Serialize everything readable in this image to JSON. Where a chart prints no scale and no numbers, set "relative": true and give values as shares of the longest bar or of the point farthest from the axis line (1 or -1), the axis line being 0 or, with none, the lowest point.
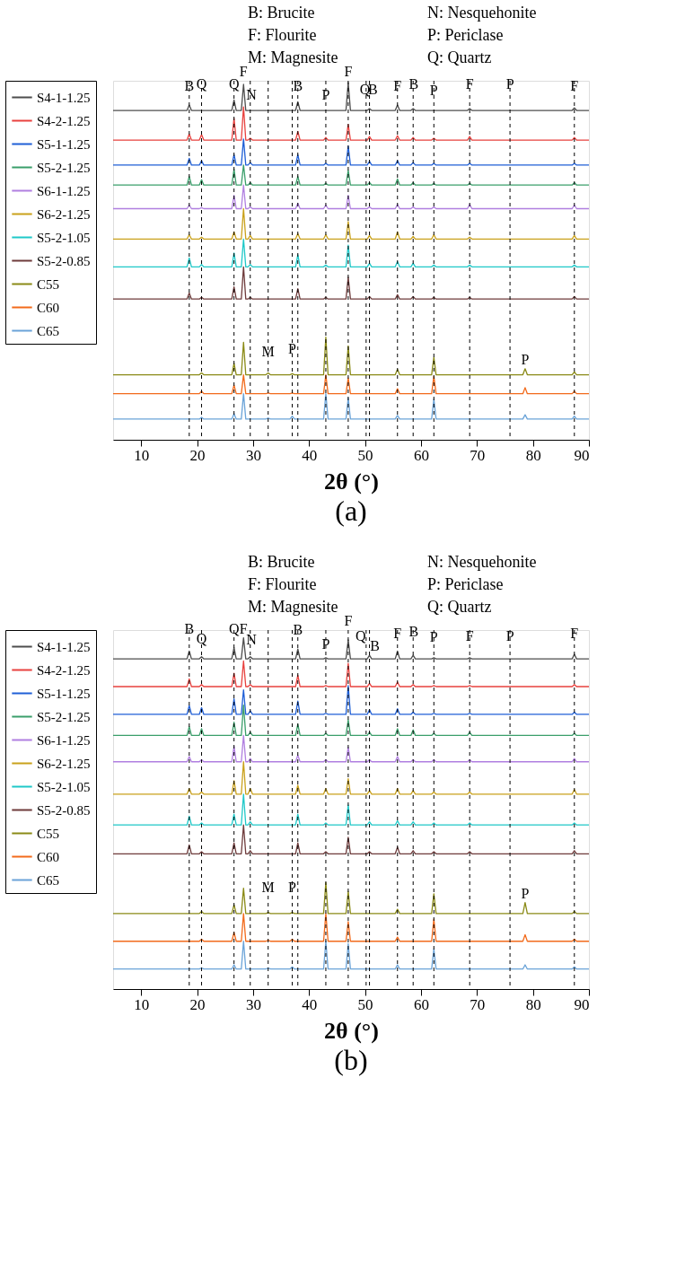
{
  "chart_data": [
    {
      "type": "line",
      "relative": true,
      "title": "(a)",
      "xlabel": "2θ (°)",
      "xlim": [
        5,
        90
      ],
      "xticks": [
        10,
        20,
        30,
        40,
        50,
        60,
        70,
        80,
        90
      ],
      "grid": false,
      "legend": "left",
      "x": [
        5,
        18.2,
        18.6,
        19.0,
        20.4,
        20.8,
        21.2,
        26.2,
        26.6,
        27.0,
        27.9,
        28.3,
        28.7,
        29.1,
        29.5,
        29.9,
        37.6,
        38.0,
        38.4,
        42.6,
        43.0,
        43.4,
        46.6,
        47.0,
        47.4,
        50.4,
        50.8,
        51.2,
        55.4,
        55.8,
        56.2,
        58.2,
        58.6,
        59.0,
        61.9,
        62.3,
        62.7,
        68.3,
        68.7,
        69.1,
        87.0,
        87.4,
        87.8,
        90
      ],
      "series": [
        {
          "name": "S4-1-1.25",
          "color": "#4d4d4d",
          "values": [
            0.922,
            0.922,
            0.937,
            0.922,
            0.922,
            0.922,
            0.922,
            0.922,
            0.951,
            0.922,
            0.922,
            0.995,
            0.922,
            0.922,
            0.922,
            0.922,
            0.922,
            0.946,
            0.922,
            0.922,
            0.922,
            0.922,
            0.922,
            1.0,
            0.922,
            0.922,
            0.927,
            0.922,
            0.922,
            0.937,
            0.922,
            0.922,
            0.927,
            0.922,
            0.922,
            0.922,
            0.922,
            0.922,
            0.927,
            0.922,
            0.922,
            0.929,
            0.922,
            0.922
          ]
        },
        {
          "name": "S4-2-1.25",
          "color": "#e8413e",
          "values": [
            0.839,
            0.839,
            0.856,
            0.839,
            0.839,
            0.854,
            0.839,
            0.839,
            0.9,
            0.839,
            0.839,
            0.932,
            0.839,
            0.839,
            0.844,
            0.839,
            0.839,
            0.863,
            0.839,
            0.839,
            0.846,
            0.839,
            0.839,
            0.883,
            0.839,
            0.839,
            0.849,
            0.839,
            0.839,
            0.851,
            0.839,
            0.839,
            0.846,
            0.839,
            0.839,
            0.844,
            0.839,
            0.839,
            0.849,
            0.839,
            0.839,
            0.846,
            0.839,
            0.839
          ]
        },
        {
          "name": "S5-1-1.25",
          "color": "#1f5fd6",
          "values": [
            0.769,
            0.769,
            0.788,
            0.769,
            0.769,
            0.781,
            0.769,
            0.769,
            0.798,
            0.769,
            0.769,
            0.842,
            0.769,
            0.769,
            0.776,
            0.769,
            0.769,
            0.798,
            0.769,
            0.769,
            0.774,
            0.769,
            0.769,
            0.822,
            0.769,
            0.769,
            0.779,
            0.769,
            0.769,
            0.781,
            0.769,
            0.769,
            0.776,
            0.769,
            0.769,
            0.774,
            0.769,
            0.769,
            0.774,
            0.769,
            0.769,
            0.774,
            0.769,
            0.769
          ]
        },
        {
          "name": "S5-2-1.25",
          "color": "#3a9e6a",
          "values": [
            0.713,
            0.713,
            0.737,
            0.713,
            0.713,
            0.728,
            0.713,
            0.713,
            0.757,
            0.713,
            0.713,
            0.769,
            0.713,
            0.713,
            0.72,
            0.713,
            0.713,
            0.737,
            0.713,
            0.713,
            0.718,
            0.713,
            0.713,
            0.754,
            0.713,
            0.713,
            0.72,
            0.713,
            0.713,
            0.73,
            0.713,
            0.713,
            0.72,
            0.713,
            0.713,
            0.718,
            0.713,
            0.713,
            0.718,
            0.713,
            0.713,
            0.72,
            0.713,
            0.713
          ]
        },
        {
          "name": "S6-1-1.25",
          "color": "#b07fe0",
          "values": [
            0.647,
            0.647,
            0.657,
            0.647,
            0.647,
            0.65,
            0.647,
            0.647,
            0.684,
            0.647,
            0.647,
            0.713,
            0.647,
            0.647,
            0.652,
            0.647,
            0.647,
            0.662,
            0.647,
            0.647,
            0.657,
            0.647,
            0.647,
            0.684,
            0.647,
            0.647,
            0.652,
            0.647,
            0.647,
            0.659,
            0.647,
            0.647,
            0.652,
            0.647,
            0.647,
            0.652,
            0.647,
            0.647,
            0.659,
            0.647,
            0.647,
            0.657,
            0.647,
            0.647
          ]
        },
        {
          "name": "S6-2-1.25",
          "color": "#c9a11b",
          "values": [
            0.562,
            0.562,
            0.574,
            0.562,
            0.562,
            0.567,
            0.562,
            0.562,
            0.582,
            0.562,
            0.562,
            0.647,
            0.562,
            0.562,
            0.572,
            0.562,
            0.562,
            0.577,
            0.562,
            0.562,
            0.574,
            0.562,
            0.562,
            0.611,
            0.562,
            0.562,
            0.572,
            0.562,
            0.562,
            0.582,
            0.562,
            0.562,
            0.569,
            0.562,
            0.562,
            0.574,
            0.562,
            0.562,
            0.567,
            0.562,
            0.562,
            0.572,
            0.562,
            0.562
          ]
        },
        {
          "name": "S5-2-1.05",
          "color": "#1fc8c8",
          "values": [
            0.484,
            0.484,
            0.509,
            0.484,
            0.484,
            0.491,
            0.484,
            0.484,
            0.523,
            0.484,
            0.484,
            0.562,
            0.484,
            0.484,
            0.491,
            0.484,
            0.484,
            0.518,
            0.484,
            0.484,
            0.489,
            0.484,
            0.484,
            0.545,
            0.484,
            0.484,
            0.494,
            0.484,
            0.484,
            0.499,
            0.484,
            0.484,
            0.494,
            0.484,
            0.484,
            0.489,
            0.484,
            0.484,
            0.489,
            0.484,
            0.484,
            0.489,
            0.484,
            0.484
          ]
        },
        {
          "name": "S5-2-0.85",
          "color": "#6e3b3b",
          "values": [
            0.394,
            0.394,
            0.411,
            0.394,
            0.394,
            0.399,
            0.394,
            0.394,
            0.428,
            0.394,
            0.394,
            0.484,
            0.394,
            0.394,
            0.399,
            0.394,
            0.394,
            0.423,
            0.394,
            0.394,
            0.399,
            0.394,
            0.394,
            0.455,
            0.394,
            0.394,
            0.401,
            0.394,
            0.394,
            0.406,
            0.394,
            0.394,
            0.401,
            0.394,
            0.394,
            0.399,
            0.394,
            0.394,
            0.399,
            0.394,
            0.394,
            0.401,
            0.394,
            0.394
          ]
        },
        {
          "name": "C55",
          "color": "#8a8a16",
          "x": [
            5,
            20.4,
            20.8,
            21.2,
            26.2,
            26.6,
            27.0,
            27.9,
            28.3,
            28.7,
            32.3,
            32.7,
            33.1,
            36.6,
            37.0,
            37.4,
            42.6,
            43.0,
            43.4,
            46.6,
            47.0,
            47.4,
            55.4,
            55.8,
            56.2,
            61.9,
            62.3,
            62.7,
            78.2,
            78.6,
            79.0,
            87.0,
            87.4,
            87.8,
            90
          ],
          "values": [
            0.182,
            0.182,
            0.187,
            0.182,
            0.182,
            0.214,
            0.182,
            0.182,
            0.273,
            0.182,
            0.182,
            0.187,
            0.182,
            0.182,
            0.185,
            0.182,
            0.182,
            0.287,
            0.182,
            0.182,
            0.263,
            0.182,
            0.182,
            0.197,
            0.182,
            0.182,
            0.231,
            0.182,
            0.182,
            0.199,
            0.182,
            0.182,
            0.19,
            0.182,
            0.182
          ]
        },
        {
          "name": "C60",
          "color": "#f26a1b",
          "x": [
            5,
            20.4,
            20.8,
            21.2,
            26.2,
            26.6,
            27.0,
            27.9,
            28.3,
            28.7,
            32.3,
            32.7,
            33.1,
            36.6,
            37.0,
            37.4,
            42.6,
            43.0,
            43.4,
            46.6,
            47.0,
            47.4,
            55.4,
            55.8,
            56.2,
            61.9,
            62.3,
            62.7,
            78.2,
            78.6,
            79.0,
            87.0,
            87.4,
            87.8,
            90
          ],
          "values": [
            0.129,
            0.129,
            0.136,
            0.129,
            0.129,
            0.153,
            0.129,
            0.129,
            0.182,
            0.129,
            0.129,
            0.131,
            0.129,
            0.129,
            0.131,
            0.129,
            0.129,
            0.182,
            0.129,
            0.129,
            0.173,
            0.129,
            0.129,
            0.143,
            0.129,
            0.129,
            0.178,
            0.129,
            0.129,
            0.146,
            0.129,
            0.129,
            0.136,
            0.129,
            0.129
          ]
        },
        {
          "name": "C65",
          "color": "#6aa3d8",
          "x": [
            5,
            20.4,
            20.8,
            21.2,
            26.2,
            26.6,
            27.0,
            27.9,
            28.3,
            28.7,
            32.3,
            32.7,
            33.1,
            36.6,
            37.0,
            37.4,
            42.6,
            43.0,
            43.4,
            46.6,
            47.0,
            47.4,
            55.4,
            55.8,
            56.2,
            61.9,
            62.3,
            62.7,
            78.2,
            78.6,
            79.0,
            87.0,
            87.4,
            87.8,
            90
          ],
          "values": [
            0.058,
            0.058,
            0.063,
            0.058,
            0.058,
            0.073,
            0.058,
            0.058,
            0.129,
            0.058,
            0.058,
            0.061,
            0.058,
            0.058,
            0.066,
            0.058,
            0.058,
            0.129,
            0.058,
            0.058,
            0.117,
            0.058,
            0.058,
            0.068,
            0.058,
            0.058,
            0.114,
            0.058,
            0.058,
            0.07,
            0.058,
            0.058,
            0.066,
            0.058,
            0.058
          ]
        }
      ],
      "ref_lines": [
        {
          "axis": "x",
          "value": 18.6,
          "line_style": "dashed",
          "color": "#000000"
        },
        {
          "axis": "x",
          "value": 20.8,
          "line_style": "dashed",
          "color": "#000000"
        },
        {
          "axis": "x",
          "value": 26.6,
          "line_style": "dashed",
          "color": "#000000"
        },
        {
          "axis": "x",
          "value": 29.5,
          "line_style": "dashed",
          "color": "#000000"
        },
        {
          "axis": "x",
          "value": 32.7,
          "line_style": "dashed",
          "color": "#000000"
        },
        {
          "axis": "x",
          "value": 37.0,
          "line_style": "dashed",
          "color": "#000000"
        },
        {
          "axis": "x",
          "value": 38.0,
          "line_style": "dashed",
          "color": "#000000"
        },
        {
          "axis": "x",
          "value": 43.0,
          "line_style": "dashed",
          "color": "#000000"
        },
        {
          "axis": "x",
          "value": 47.0,
          "line_style": "dashed",
          "color": "#000000"
        },
        {
          "axis": "x",
          "value": 50.2,
          "line_style": "dashed",
          "color": "#000000"
        },
        {
          "axis": "x",
          "value": 50.8,
          "line_style": "dashed",
          "color": "#000000"
        },
        {
          "axis": "x",
          "value": 55.8,
          "line_style": "dashed",
          "color": "#000000"
        },
        {
          "axis": "x",
          "value": 58.6,
          "line_style": "dashed",
          "color": "#000000"
        },
        {
          "axis": "x",
          "value": 62.3,
          "line_style": "dashed",
          "color": "#000000"
        },
        {
          "axis": "x",
          "value": 68.7,
          "line_style": "dashed",
          "color": "#000000"
        },
        {
          "axis": "x",
          "value": 75.9,
          "line_style": "dashed",
          "color": "#000000"
        },
        {
          "axis": "x",
          "value": 87.4,
          "line_style": "dashed",
          "color": "#000000"
        }
      ],
      "annotations": [
        "B: Brucite",
        "F: Flourite",
        "M: Magnesite",
        "N: Nesquehonite",
        "P: Periclase",
        "Q: Quartz",
        {
          "text": "B",
          "x": 18.6,
          "y": 0.964
        },
        {
          "text": "Q",
          "x": 20.8,
          "y": 0.971
        },
        {
          "text": "Q",
          "x": 26.6,
          "y": 0.971
        },
        {
          "text": "F",
          "x": 28.3,
          "y": 1.005
        },
        {
          "text": "N",
          "x": 29.7,
          "y": 0.939
        },
        {
          "text": "B",
          "x": 38.0,
          "y": 0.964
        },
        {
          "text": "P",
          "x": 43.0,
          "y": 0.939
        },
        {
          "text": "F",
          "x": 47.0,
          "y": 1.005
        },
        {
          "text": "Q",
          "x": 50.0,
          "y": 0.956
        },
        {
          "text": "B",
          "x": 51.4,
          "y": 0.956
        },
        {
          "text": "F",
          "x": 55.8,
          "y": 0.964
        },
        {
          "text": "B",
          "x": 58.7,
          "y": 0.971
        },
        {
          "text": "P",
          "x": 62.3,
          "y": 0.951
        },
        {
          "text": "F",
          "x": 68.7,
          "y": 0.971
        },
        {
          "text": "P",
          "x": 75.9,
          "y": 0.971
        },
        {
          "text": "F",
          "x": 87.4,
          "y": 0.964
        },
        {
          "text": "M",
          "x": 32.7,
          "y": 0.221
        },
        {
          "text": "P",
          "x": 37.0,
          "y": 0.229
        },
        {
          "text": "P",
          "x": 78.6,
          "y": 0.199
        }
      ]
    },
    {
      "type": "line",
      "relative": true,
      "title": "(b)",
      "xlabel": "2θ (°)",
      "xlim": [
        5,
        90
      ],
      "xticks": [
        10,
        20,
        30,
        40,
        50,
        60,
        70,
        80,
        90
      ],
      "grid": false,
      "legend": "left",
      "x": [
        5,
        18.2,
        18.6,
        19.0,
        20.4,
        20.8,
        21.2,
        26.2,
        26.6,
        27.0,
        27.9,
        28.3,
        28.7,
        29.1,
        29.5,
        29.9,
        37.6,
        38.0,
        38.4,
        42.6,
        43.0,
        43.4,
        46.6,
        47.0,
        47.4,
        50.4,
        50.8,
        51.2,
        55.4,
        55.8,
        56.2,
        58.2,
        58.6,
        59.0,
        61.9,
        62.3,
        62.7,
        68.3,
        68.7,
        69.1,
        87.0,
        87.4,
        87.8,
        90
      ],
      "series": [
        {
          "name": "S4-1-1.25",
          "color": "#4d4d4d",
          "values": [
            0.94,
            0.94,
            0.962,
            0.94,
            0.94,
            0.946,
            0.94,
            0.94,
            0.972,
            0.94,
            0.94,
            1.0,
            0.94,
            0.94,
            0.946,
            0.94,
            0.94,
            0.968,
            0.94,
            0.94,
            0.943,
            0.94,
            0.94,
            0.994,
            0.94,
            0.94,
            0.95,
            0.94,
            0.94,
            0.962,
            0.94,
            0.94,
            0.95,
            0.94,
            0.94,
            0.943,
            0.94,
            0.94,
            0.943,
            0.94,
            0.94,
            0.953,
            0.94,
            0.94
          ]
        },
        {
          "name": "S4-2-1.25",
          "color": "#e8413e",
          "values": [
            0.861,
            0.861,
            0.883,
            0.861,
            0.861,
            0.867,
            0.861,
            0.861,
            0.899,
            0.861,
            0.861,
            0.934,
            0.861,
            0.861,
            0.867,
            0.861,
            0.861,
            0.893,
            0.861,
            0.861,
            0.864,
            0.861,
            0.861,
            0.927,
            0.861,
            0.861,
            0.87,
            0.861,
            0.861,
            0.874,
            0.861,
            0.861,
            0.867,
            0.861,
            0.861,
            0.864,
            0.861,
            0.861,
            0.864,
            0.861,
            0.861,
            0.867,
            0.861,
            0.861
          ]
        },
        {
          "name": "S5-1-1.25",
          "color": "#1f5fd6",
          "values": [
            0.782,
            0.782,
            0.807,
            0.782,
            0.782,
            0.801,
            0.782,
            0.782,
            0.826,
            0.782,
            0.782,
            0.852,
            0.782,
            0.782,
            0.792,
            0.782,
            0.782,
            0.82,
            0.782,
            0.782,
            0.785,
            0.782,
            0.782,
            0.864,
            0.782,
            0.782,
            0.795,
            0.782,
            0.782,
            0.798,
            0.782,
            0.782,
            0.788,
            0.782,
            0.782,
            0.785,
            0.782,
            0.782,
            0.785,
            0.782,
            0.782,
            0.788,
            0.782,
            0.782
          ]
        },
        {
          "name": "S5-2-1.25",
          "color": "#3a9e6a",
          "values": [
            0.722,
            0.722,
            0.747,
            0.722,
            0.722,
            0.741,
            0.722,
            0.722,
            0.76,
            0.722,
            0.722,
            0.808,
            0.722,
            0.722,
            0.731,
            0.722,
            0.722,
            0.754,
            0.722,
            0.722,
            0.728,
            0.722,
            0.722,
            0.766,
            0.722,
            0.722,
            0.731,
            0.722,
            0.722,
            0.741,
            0.722,
            0.722,
            0.738,
            0.722,
            0.722,
            0.728,
            0.722,
            0.722,
            0.731,
            0.722,
            0.722,
            0.728,
            0.722,
            0.722
          ]
        },
        {
          "name": "S6-1-1.25",
          "color": "#b07fe0",
          "values": [
            0.647,
            0.647,
            0.662,
            0.647,
            0.647,
            0.653,
            0.647,
            0.647,
            0.691,
            0.647,
            0.647,
            0.722,
            0.647,
            0.647,
            0.656,
            0.647,
            0.647,
            0.666,
            0.647,
            0.647,
            0.653,
            0.647,
            0.647,
            0.688,
            0.647,
            0.647,
            0.653,
            0.647,
            0.647,
            0.662,
            0.647,
            0.647,
            0.653,
            0.647,
            0.647,
            0.653,
            0.647,
            0.647,
            0.653,
            0.647,
            0.647,
            0.656,
            0.647,
            0.647
          ]
        },
        {
          "name": "S6-2-1.25",
          "color": "#c9a11b",
          "values": [
            0.555,
            0.555,
            0.571,
            0.555,
            0.555,
            0.561,
            0.555,
            0.555,
            0.593,
            0.555,
            0.555,
            0.647,
            0.555,
            0.555,
            0.571,
            0.555,
            0.555,
            0.58,
            0.555,
            0.555,
            0.571,
            0.555,
            0.555,
            0.599,
            0.555,
            0.555,
            0.565,
            0.555,
            0.555,
            0.571,
            0.555,
            0.555,
            0.565,
            0.555,
            0.555,
            0.561,
            0.555,
            0.555,
            0.561,
            0.555,
            0.555,
            0.568,
            0.555,
            0.555
          ]
        },
        {
          "name": "S5-2-1.05",
          "color": "#1fc8c8",
          "values": [
            0.467,
            0.467,
            0.492,
            0.467,
            0.467,
            0.473,
            0.467,
            0.467,
            0.498,
            0.467,
            0.467,
            0.555,
            0.467,
            0.467,
            0.476,
            0.467,
            0.467,
            0.498,
            0.467,
            0.467,
            0.473,
            0.467,
            0.467,
            0.524,
            0.467,
            0.467,
            0.476,
            0.467,
            0.467,
            0.479,
            0.467,
            0.467,
            0.476,
            0.467,
            0.467,
            0.473,
            0.467,
            0.467,
            0.473,
            0.467,
            0.467,
            0.473,
            0.467,
            0.467
          ]
        },
        {
          "name": "S5-2-0.85",
          "color": "#6e3b3b",
          "values": [
            0.385,
            0.385,
            0.41,
            0.385,
            0.385,
            0.391,
            0.385,
            0.385,
            0.416,
            0.385,
            0.385,
            0.467,
            0.385,
            0.385,
            0.394,
            0.385,
            0.385,
            0.416,
            0.385,
            0.385,
            0.391,
            0.385,
            0.385,
            0.432,
            0.385,
            0.385,
            0.391,
            0.385,
            0.385,
            0.404,
            0.385,
            0.385,
            0.394,
            0.385,
            0.385,
            0.391,
            0.385,
            0.385,
            0.391,
            0.385,
            0.385,
            0.394,
            0.385,
            0.385
          ]
        },
        {
          "name": "C55",
          "color": "#8a8a16",
          "x": [
            5,
            20.4,
            20.8,
            21.2,
            26.2,
            26.6,
            27.0,
            27.9,
            28.3,
            28.7,
            32.3,
            32.7,
            33.1,
            36.6,
            37.0,
            37.4,
            42.6,
            43.0,
            43.4,
            46.6,
            47.0,
            47.4,
            55.4,
            55.8,
            56.2,
            61.9,
            62.3,
            62.7,
            78.2,
            78.6,
            79.0,
            87.0,
            87.4,
            87.8,
            90
          ],
          "values": [
            0.215,
            0.215,
            0.221,
            0.215,
            0.215,
            0.24,
            0.215,
            0.215,
            0.287,
            0.215,
            0.215,
            0.218,
            0.215,
            0.215,
            0.218,
            0.215,
            0.215,
            0.303,
            0.215,
            0.215,
            0.278,
            0.215,
            0.215,
            0.227,
            0.215,
            0.215,
            0.271,
            0.215,
            0.215,
            0.246,
            0.215,
            0.215,
            0.221,
            0.215,
            0.215
          ]
        },
        {
          "name": "C60",
          "color": "#f26a1b",
          "x": [
            5,
            20.4,
            20.8,
            21.2,
            26.2,
            26.6,
            27.0,
            27.9,
            28.3,
            28.7,
            32.3,
            32.7,
            33.1,
            36.6,
            37.0,
            37.4,
            42.6,
            43.0,
            43.4,
            46.6,
            47.0,
            47.4,
            55.4,
            55.8,
            56.2,
            61.9,
            62.3,
            62.7,
            78.2,
            78.6,
            79.0,
            87.0,
            87.4,
            87.8,
            90
          ],
          "values": [
            0.136,
            0.136,
            0.142,
            0.136,
            0.136,
            0.161,
            0.136,
            0.136,
            0.215,
            0.136,
            0.136,
            0.139,
            0.136,
            0.136,
            0.142,
            0.136,
            0.136,
            0.215,
            0.136,
            0.136,
            0.192,
            0.136,
            0.136,
            0.148,
            0.136,
            0.136,
            0.199,
            0.136,
            0.136,
            0.155,
            0.136,
            0.136,
            0.142,
            0.136,
            0.136
          ]
        },
        {
          "name": "C65",
          "color": "#6aa3d8",
          "x": [
            5,
            20.4,
            20.8,
            21.2,
            26.2,
            26.6,
            27.0,
            27.9,
            28.3,
            28.7,
            32.3,
            32.7,
            33.1,
            36.6,
            37.0,
            37.4,
            42.6,
            43.0,
            43.4,
            46.6,
            47.0,
            47.4,
            55.4,
            55.8,
            56.2,
            61.9,
            62.3,
            62.7,
            78.2,
            78.6,
            79.0,
            87.0,
            87.4,
            87.8,
            90
          ],
          "values": [
            0.057,
            0.057,
            0.06,
            0.057,
            0.057,
            0.069,
            0.057,
            0.057,
            0.136,
            0.057,
            0.057,
            0.06,
            0.057,
            0.057,
            0.063,
            0.057,
            0.057,
            0.136,
            0.057,
            0.057,
            0.129,
            0.057,
            0.057,
            0.069,
            0.057,
            0.057,
            0.114,
            0.057,
            0.057,
            0.069,
            0.057,
            0.057,
            0.063,
            0.057,
            0.057
          ]
        }
      ],
      "ref_lines": [
        {
          "axis": "x",
          "value": 18.6,
          "line_style": "dashed",
          "color": "#000000"
        },
        {
          "axis": "x",
          "value": 20.8,
          "line_style": "dashed",
          "color": "#000000"
        },
        {
          "axis": "x",
          "value": 26.6,
          "line_style": "dashed",
          "color": "#000000"
        },
        {
          "axis": "x",
          "value": 29.5,
          "line_style": "dashed",
          "color": "#000000"
        },
        {
          "axis": "x",
          "value": 32.7,
          "line_style": "dashed",
          "color": "#000000"
        },
        {
          "axis": "x",
          "value": 37.0,
          "line_style": "dashed",
          "color": "#000000"
        },
        {
          "axis": "x",
          "value": 38.0,
          "line_style": "dashed",
          "color": "#000000"
        },
        {
          "axis": "x",
          "value": 43.0,
          "line_style": "dashed",
          "color": "#000000"
        },
        {
          "axis": "x",
          "value": 47.0,
          "line_style": "dashed",
          "color": "#000000"
        },
        {
          "axis": "x",
          "value": 50.2,
          "line_style": "dashed",
          "color": "#000000"
        },
        {
          "axis": "x",
          "value": 50.8,
          "line_style": "dashed",
          "color": "#000000"
        },
        {
          "axis": "x",
          "value": 55.8,
          "line_style": "dashed",
          "color": "#000000"
        },
        {
          "axis": "x",
          "value": 58.6,
          "line_style": "dashed",
          "color": "#000000"
        },
        {
          "axis": "x",
          "value": 62.3,
          "line_style": "dashed",
          "color": "#000000"
        },
        {
          "axis": "x",
          "value": 68.7,
          "line_style": "dashed",
          "color": "#000000"
        },
        {
          "axis": "x",
          "value": 75.9,
          "line_style": "dashed",
          "color": "#000000"
        },
        {
          "axis": "x",
          "value": 87.4,
          "line_style": "dashed",
          "color": "#000000"
        }
      ],
      "annotations": [
        "B: Brucite",
        "F: Flourite",
        "M: Magnesite",
        "N: Nesquehonite",
        "P: Periclase",
        "Q: Quartz",
        {
          "text": "B",
          "x": 18.6,
          "y": 1.0
        },
        {
          "text": "Q",
          "x": 20.8,
          "y": 0.972
        },
        {
          "text": "Q",
          "x": 26.6,
          "y": 1.0
        },
        {
          "text": "F",
          "x": 28.3,
          "y": 1.0
        },
        {
          "text": "N",
          "x": 29.7,
          "y": 0.968
        },
        {
          "text": "B",
          "x": 38.0,
          "y": 0.997
        },
        {
          "text": "P",
          "x": 43.0,
          "y": 0.956
        },
        {
          "text": "F",
          "x": 47.0,
          "y": 1.022
        },
        {
          "text": "Q",
          "x": 50.2,
          "y": 0.978
        },
        {
          "text": "B",
          "x": 50.8,
          "y": 0.95
        },
        {
          "text": "F",
          "x": 55.8,
          "y": 0.987
        },
        {
          "text": "B",
          "x": 58.7,
          "y": 0.991
        },
        {
          "text": "P",
          "x": 62.3,
          "y": 0.975
        },
        {
          "text": "F",
          "x": 68.7,
          "y": 0.978
        },
        {
          "text": "P",
          "x": 75.9,
          "y": 0.978
        },
        {
          "text": "F",
          "x": 87.4,
          "y": 0.987
        },
        {
          "text": "M",
          "x": 32.7,
          "y": 0.262
        },
        {
          "text": "P",
          "x": 37.0,
          "y": 0.262
        },
        {
          "text": "P",
          "x": 78.6,
          "y": 0.246
        }
      ]
    }
  ]
}
